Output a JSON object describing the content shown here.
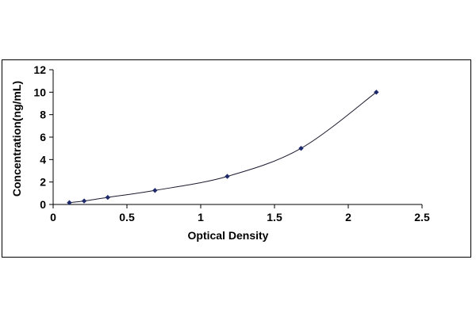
{
  "chart_data": {
    "type": "scatter",
    "title": "",
    "xlabel": "Optical Density",
    "ylabel": "Concentration(ng/mL)",
    "xlim": [
      0,
      2.5
    ],
    "ylim": [
      0,
      12
    ],
    "x_ticks": [
      "0",
      "0.5",
      "1",
      "1.5",
      "2",
      "2.5"
    ],
    "y_ticks": [
      "0",
      "2",
      "4",
      "6",
      "8",
      "10",
      "12"
    ],
    "grid": false,
    "legend": "none",
    "series": [
      {
        "x": [
          0.11,
          0.21,
          0.37,
          0.69,
          1.18,
          1.68,
          2.19
        ],
        "y": [
          0.16,
          0.31,
          0.63,
          1.25,
          2.5,
          5.0,
          10.0
        ],
        "marker": "diamond",
        "trendline": "smooth",
        "color": "#1f2a6b"
      }
    ]
  }
}
